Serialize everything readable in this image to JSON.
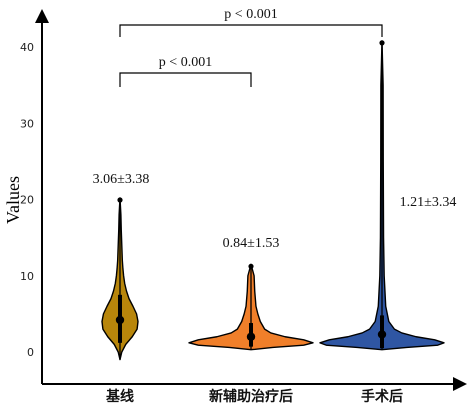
{
  "chart_data": {
    "type": "violin",
    "ylabel": "Values",
    "ylim": [
      -2,
      45
    ],
    "yticks": [
      0,
      10,
      20,
      30,
      40
    ],
    "categories": [
      "基线",
      "新辅助治疗后",
      "手术后"
    ],
    "colors": [
      "#b8860b",
      "#f07f2a",
      "#2f56a3"
    ],
    "groups": [
      {
        "label": "基线",
        "annotation": "3.06±3.38",
        "median": 4.2,
        "q1": 1.2,
        "q3": 7.5,
        "min": -1.0,
        "max": 20.2,
        "profile": [
          [
            -1.0,
            0.0
          ],
          [
            0.0,
            0.1
          ],
          [
            1.0,
            0.32
          ],
          [
            2.0,
            0.68
          ],
          [
            3.0,
            0.95
          ],
          [
            4.0,
            1.0
          ],
          [
            5.0,
            0.92
          ],
          [
            6.0,
            0.72
          ],
          [
            7.0,
            0.5
          ],
          [
            8.0,
            0.36
          ],
          [
            9.0,
            0.26
          ],
          [
            10.0,
            0.2
          ],
          [
            11.0,
            0.16
          ],
          [
            12.0,
            0.13
          ],
          [
            14.0,
            0.1
          ],
          [
            16.0,
            0.07
          ],
          [
            18.0,
            0.05
          ],
          [
            20.2,
            0.0
          ]
        ]
      },
      {
        "label": "新辅助治疗后",
        "annotation": "0.84±1.53",
        "median": 2.0,
        "q1": 0.7,
        "q3": 3.8,
        "min": 0.3,
        "max": 11.5,
        "profile": [
          [
            0.3,
            0.0
          ],
          [
            0.6,
            0.35
          ],
          [
            0.9,
            0.85
          ],
          [
            1.2,
            1.0
          ],
          [
            1.6,
            0.85
          ],
          [
            2.0,
            0.55
          ],
          [
            2.5,
            0.32
          ],
          [
            3.0,
            0.22
          ],
          [
            4.0,
            0.15
          ],
          [
            5.0,
            0.11
          ],
          [
            6.0,
            0.08
          ],
          [
            8.0,
            0.06
          ],
          [
            10.0,
            0.05
          ],
          [
            11.5,
            0.0
          ]
        ]
      },
      {
        "label": "手术后",
        "annotation": "1.21±3.34",
        "median": 2.3,
        "q1": 0.5,
        "q3": 4.8,
        "min": 0.3,
        "max": 40.8,
        "profile": [
          [
            0.3,
            0.0
          ],
          [
            0.6,
            0.4
          ],
          [
            0.9,
            0.9
          ],
          [
            1.2,
            1.0
          ],
          [
            1.6,
            0.85
          ],
          [
            2.0,
            0.55
          ],
          [
            2.5,
            0.32
          ],
          [
            3.0,
            0.2
          ],
          [
            4.0,
            0.11
          ],
          [
            6.0,
            0.06
          ],
          [
            10.0,
            0.035
          ],
          [
            15.0,
            0.025
          ],
          [
            25.0,
            0.02
          ],
          [
            35.0,
            0.018
          ],
          [
            40.8,
            0.0
          ]
        ]
      }
    ],
    "comparisons": [
      {
        "from": 0,
        "to": 1,
        "label": "p < 0.001"
      },
      {
        "from": 0,
        "to": 2,
        "label": "p < 0.001"
      }
    ]
  }
}
